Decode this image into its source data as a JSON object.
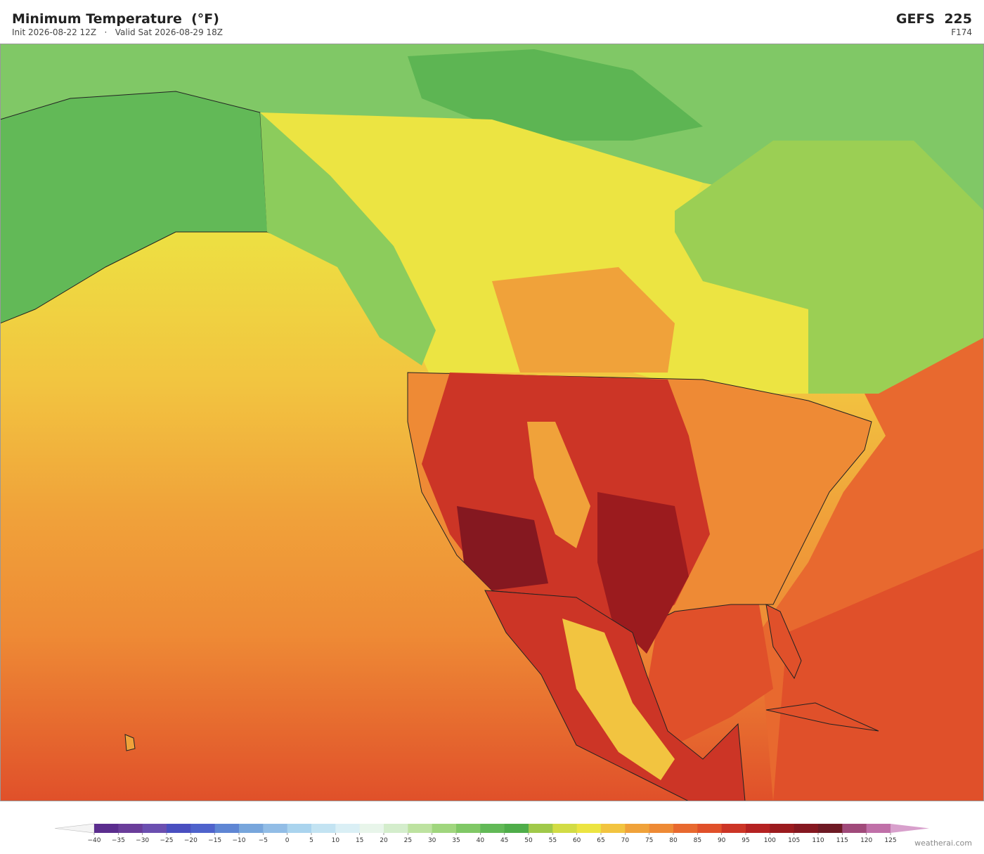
{
  "header": {
    "title": "Minimum Temperature  (°F)",
    "subtitle": "Init 2026-08-22 12Z   ·   Valid Sat 2026-08-29 18Z",
    "model": "GEFS  225",
    "forecast_hour": "F174"
  },
  "colorbar": {
    "ticks": [
      {
        "value": -40,
        "label": "−40"
      },
      {
        "value": -35,
        "label": "−35"
      },
      {
        "value": -30,
        "label": "−30"
      },
      {
        "value": -25,
        "label": "−25"
      },
      {
        "value": -20,
        "label": "−20"
      },
      {
        "value": -15,
        "label": "−15"
      },
      {
        "value": -10,
        "label": "−10"
      },
      {
        "value": -5,
        "label": "−5"
      },
      0,
      5,
      10,
      15,
      20,
      25,
      30,
      35,
      40,
      45,
      50,
      55,
      60,
      65,
      70,
      75,
      80,
      85,
      90,
      95,
      100,
      105,
      110,
      115,
      120,
      125
    ],
    "colors": [
      "#5b2d8e",
      "#6a3d9a",
      "#6b4fb0",
      "#4a4fc0",
      "#4f63cc",
      "#5f86d4",
      "#78a6dc",
      "#92bde6",
      "#aad4ee",
      "#c3e3f2",
      "#daeff5",
      "#e8f5ea",
      "#d4edcc",
      "#bde2a0",
      "#a0d67e",
      "#80c866",
      "#62b957",
      "#4fad4a",
      "#a0c94a",
      "#d2dc45",
      "#ece442",
      "#f2c440",
      "#f0a23a",
      "#ee8a35",
      "#e8692f",
      "#e0502a",
      "#cc3526",
      "#b52222",
      "#9b1b1e",
      "#851820",
      "#6e1a24",
      "#a04a7a",
      "#c070a8"
    ],
    "under_color": "#f4f4f4",
    "over_color": "#d8a0cc"
  },
  "watermark": "weatherai.com"
}
